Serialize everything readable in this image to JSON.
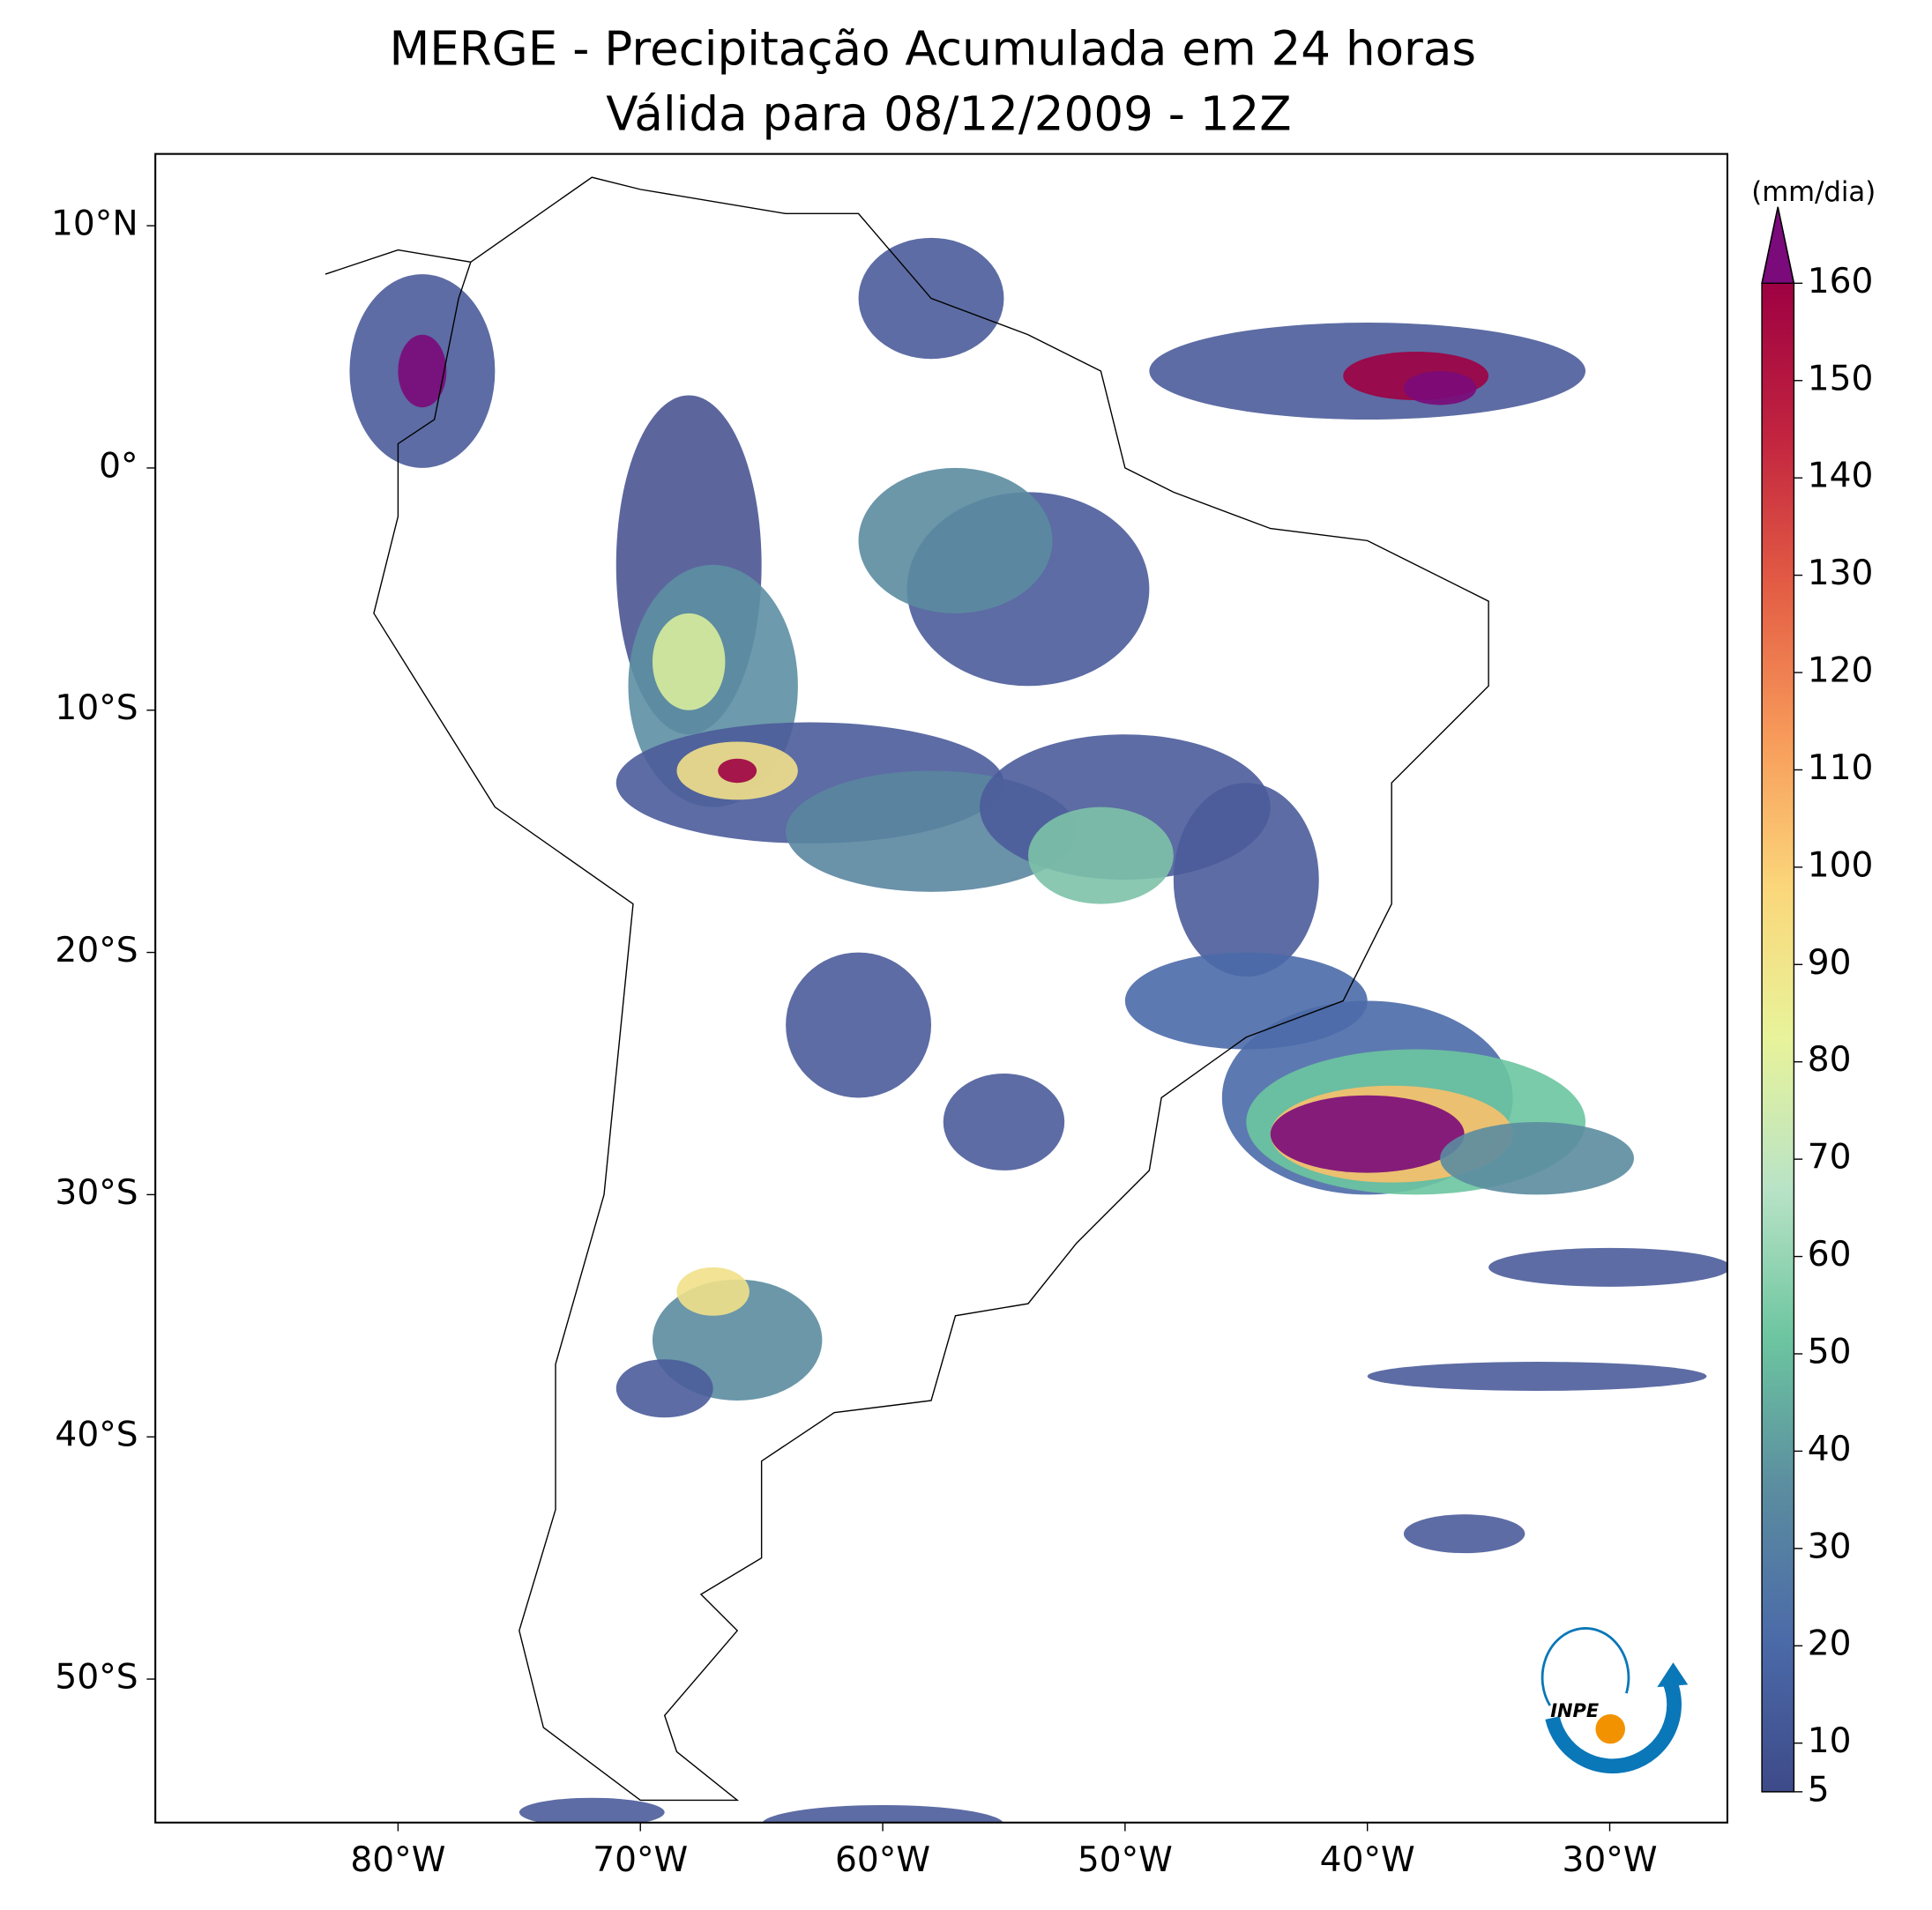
{
  "title": [
    "MERGE - Precipitação Acumulada em 24 horas",
    "Válida para 08/12/2009 - 12Z"
  ],
  "lat_ticks": [
    {
      "value": 10,
      "label": "10°N"
    },
    {
      "value": 0,
      "label": "0°"
    },
    {
      "value": -10,
      "label": "10°S"
    },
    {
      "value": -20,
      "label": "20°S"
    },
    {
      "value": -30,
      "label": "30°S"
    },
    {
      "value": -40,
      "label": "40°S"
    },
    {
      "value": -50,
      "label": "50°S"
    }
  ],
  "lon_ticks": [
    {
      "value": -80,
      "label": "80°W"
    },
    {
      "value": -70,
      "label": "70°W"
    },
    {
      "value": -60,
      "label": "60°W"
    },
    {
      "value": -50,
      "label": "50°W"
    },
    {
      "value": -40,
      "label": "40°W"
    },
    {
      "value": -30,
      "label": "30°W"
    }
  ],
  "colorbar": {
    "label": "(mm/dia)",
    "lim": [
      5,
      160
    ],
    "ticks": [
      5,
      10,
      20,
      30,
      40,
      50,
      60,
      70,
      80,
      90,
      100,
      110,
      120,
      130,
      140,
      150,
      160
    ],
    "colors": [
      "#3e4a89",
      "#4b6aa8",
      "#5b8ca0",
      "#6cc5a0",
      "#b9e3c6",
      "#e8f39a",
      "#fbd67a",
      "#f79a5a",
      "#e35c44",
      "#c1233f",
      "#9e0142"
    ],
    "extend_color": "#7b0a7a"
  },
  "logo": "INPE"
}
